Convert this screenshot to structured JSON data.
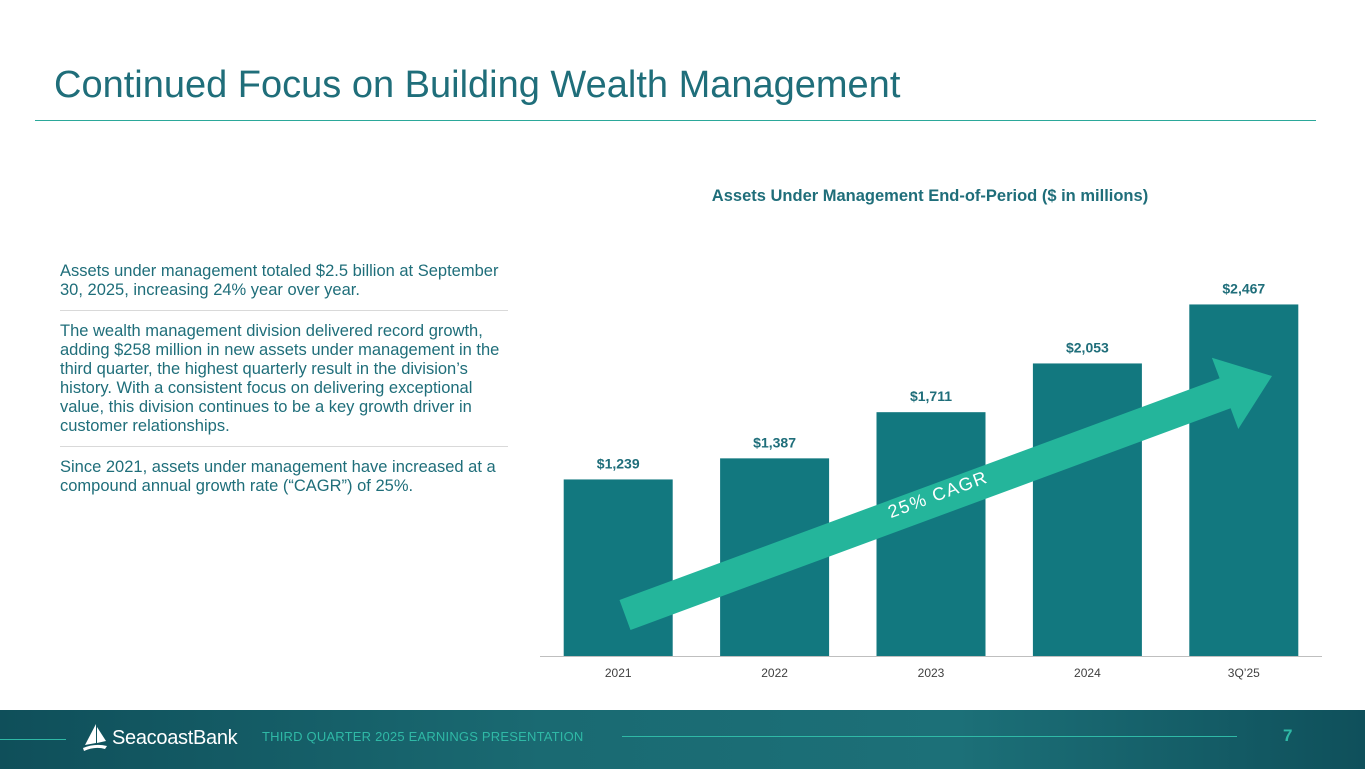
{
  "page": {
    "title": "Continued Focus on Building Wealth Management",
    "bullets": [
      "Assets under management totaled $2.5 billion at September 30, 2025, increasing 24% year over year.",
      "The wealth management division delivered record growth, adding $258 million in new assets under management in the third quarter, the highest quarterly result in the division’s history. With a consistent focus on delivering exceptional value, this division continues to be a key growth driver in customer relationships.",
      "Since 2021, assets under management have increased at a compound annual growth rate (“CAGR”) of 25%."
    ]
  },
  "chart_data": {
    "type": "bar",
    "title": "Assets Under Management End-of-Period ($ in millions)",
    "categories": [
      "2021",
      "2022",
      "2023",
      "2024",
      "3Q’25"
    ],
    "values": [
      1239,
      1387,
      1711,
      2053,
      2467
    ],
    "value_labels": [
      "$1,239",
      "$1,387",
      "$1,711",
      "$2,053",
      "$2,467"
    ],
    "ylim": [
      0,
      2800
    ],
    "grid": false,
    "annotation": "25% CAGR",
    "colors": {
      "bar": "#12787f",
      "arrow": "#24b59b",
      "label": "#1f6e7a",
      "axis": "#bfbfbf"
    }
  },
  "footer": {
    "logo_icon": "sailboat-icon",
    "brand": "SeacoastBank",
    "subtitle": "THIRD QUARTER 2025 EARNINGS PRESENTATION",
    "page_number": "7"
  }
}
